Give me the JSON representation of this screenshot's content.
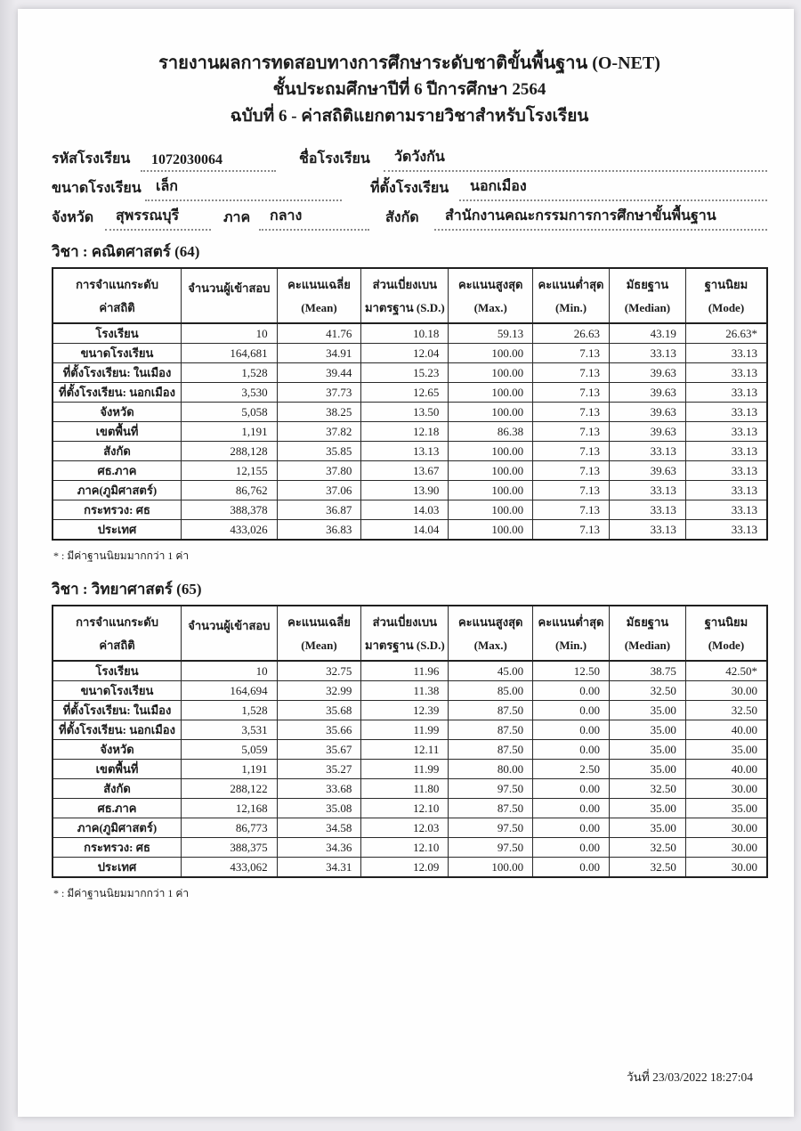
{
  "doc": {
    "title_lines": [
      "รายงานผลการทดสอบทางการศึกษาระดับชาติขั้นพื้นฐาน (O-NET)",
      "ชั้นประถมศึกษาปีที่ 6  ปีการศึกษา 2564",
      "ฉบับที่ 6 - ค่าสถิติแยกตามรายวิชาสำหรับโรงเรียน"
    ],
    "footer_date": "วันที่ 23/03/2022 18:27:04"
  },
  "school_info": {
    "school_code_label": "รหัสโรงเรียน",
    "school_code": "1072030064",
    "school_name_label": "ชื่อโรงเรียน",
    "school_name": "วัดวังกัน",
    "school_size_label": "ขนาดโรงเรียน",
    "school_size": "เล็ก",
    "school_location_label": "ที่ตั้งโรงเรียน",
    "school_location": "นอกเมือง",
    "province_label": "จังหวัด",
    "province": "สุพรรณบุรี",
    "region_label": "ภาค",
    "region": "กลาง",
    "affiliation_label": "สังกัด",
    "affiliation": "สำนักงานคณะกรรมการการศึกษาขั้นพื้นฐาน"
  },
  "table_headers": [
    {
      "line1": "การจำแนกระดับ",
      "line2": "ค่าสถิติ"
    },
    {
      "line1": "จำนวนผู้เข้าสอบ",
      "line2": ""
    },
    {
      "line1": "คะแนนเฉลี่ย",
      "line2": "(Mean)"
    },
    {
      "line1": "ส่วนเบี่ยงเบน",
      "line2": "มาตรฐาน (S.D.)"
    },
    {
      "line1": "คะแนนสูงสุด",
      "line2": "(Max.)"
    },
    {
      "line1": "คะแนนต่ำสุด",
      "line2": "(Min.)"
    },
    {
      "line1": "มัธยฐาน",
      "line2": "(Median)"
    },
    {
      "line1": "ฐานนิยม",
      "line2": "(Mode)"
    }
  ],
  "tables": [
    {
      "subject_label": "วิชา :  คณิตศาสตร์ (64)",
      "rows": [
        [
          "โรงเรียน",
          "10",
          "41.76",
          "10.18",
          "59.13",
          "26.63",
          "43.19",
          "26.63*"
        ],
        [
          "ขนาดโรงเรียน",
          "164,681",
          "34.91",
          "12.04",
          "100.00",
          "7.13",
          "33.13",
          "33.13"
        ],
        [
          "ที่ตั้งโรงเรียน: ในเมือง",
          "1,528",
          "39.44",
          "15.23",
          "100.00",
          "7.13",
          "39.63",
          "33.13"
        ],
        [
          "ที่ตั้งโรงเรียน: นอกเมือง",
          "3,530",
          "37.73",
          "12.65",
          "100.00",
          "7.13",
          "39.63",
          "33.13"
        ],
        [
          "จังหวัด",
          "5,058",
          "38.25",
          "13.50",
          "100.00",
          "7.13",
          "39.63",
          "33.13"
        ],
        [
          "เขตพื้นที่",
          "1,191",
          "37.82",
          "12.18",
          "86.38",
          "7.13",
          "39.63",
          "33.13"
        ],
        [
          "สังกัด",
          "288,128",
          "35.85",
          "13.13",
          "100.00",
          "7.13",
          "33.13",
          "33.13"
        ],
        [
          "ศธ.ภาค",
          "12,155",
          "37.80",
          "13.67",
          "100.00",
          "7.13",
          "39.63",
          "33.13"
        ],
        [
          "ภาค(ภูมิศาสตร์)",
          "86,762",
          "37.06",
          "13.90",
          "100.00",
          "7.13",
          "33.13",
          "33.13"
        ],
        [
          "กระทรวง: ศธ",
          "388,378",
          "36.87",
          "14.03",
          "100.00",
          "7.13",
          "33.13",
          "33.13"
        ],
        [
          "ประเทศ",
          "433,026",
          "36.83",
          "14.04",
          "100.00",
          "7.13",
          "33.13",
          "33.13"
        ]
      ],
      "footnote": "* : มีค่าฐานนิยมมากกว่า 1 ค่า"
    },
    {
      "subject_label": "วิชา :  วิทยาศาสตร์ (65)",
      "rows": [
        [
          "โรงเรียน",
          "10",
          "32.75",
          "11.96",
          "45.00",
          "12.50",
          "38.75",
          "42.50*"
        ],
        [
          "ขนาดโรงเรียน",
          "164,694",
          "32.99",
          "11.38",
          "85.00",
          "0.00",
          "32.50",
          "30.00"
        ],
        [
          "ที่ตั้งโรงเรียน: ในเมือง",
          "1,528",
          "35.68",
          "12.39",
          "87.50",
          "0.00",
          "35.00",
          "32.50"
        ],
        [
          "ที่ตั้งโรงเรียน: นอกเมือง",
          "3,531",
          "35.66",
          "11.99",
          "87.50",
          "0.00",
          "35.00",
          "40.00"
        ],
        [
          "จังหวัด",
          "5,059",
          "35.67",
          "12.11",
          "87.50",
          "0.00",
          "35.00",
          "35.00"
        ],
        [
          "เขตพื้นที่",
          "1,191",
          "35.27",
          "11.99",
          "80.00",
          "2.50",
          "35.00",
          "40.00"
        ],
        [
          "สังกัด",
          "288,122",
          "33.68",
          "11.80",
          "97.50",
          "0.00",
          "32.50",
          "30.00"
        ],
        [
          "ศธ.ภาค",
          "12,168",
          "35.08",
          "12.10",
          "87.50",
          "0.00",
          "35.00",
          "35.00"
        ],
        [
          "ภาค(ภูมิศาสตร์)",
          "86,773",
          "34.58",
          "12.03",
          "97.50",
          "0.00",
          "35.00",
          "30.00"
        ],
        [
          "กระทรวง: ศธ",
          "388,375",
          "34.36",
          "12.10",
          "97.50",
          "0.00",
          "32.50",
          "30.00"
        ],
        [
          "ประเทศ",
          "433,062",
          "34.31",
          "12.09",
          "100.00",
          "0.00",
          "32.50",
          "30.00"
        ]
      ],
      "footnote": "* : มีค่าฐานนิยมมากกว่า 1 ค่า"
    }
  ]
}
